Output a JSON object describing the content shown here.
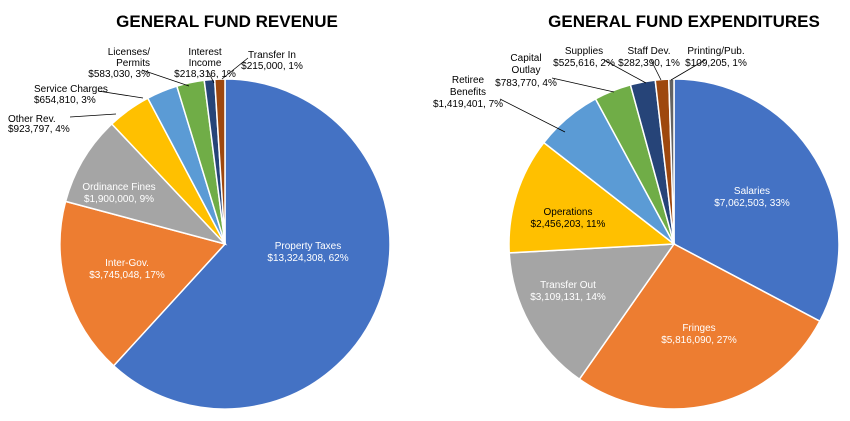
{
  "chart_data": [
    {
      "type": "pie",
      "title": "GENERAL FUND REVENUE",
      "slices": [
        {
          "name": "Property Taxes",
          "value": 13324308,
          "label": "$13,324,308, 62%",
          "color": "#4472c4"
        },
        {
          "name": "Inter-Gov.",
          "value": 3745048,
          "label": "$3,745,048, 17%",
          "color": "#ed7d31"
        },
        {
          "name": "Ordinance Fines",
          "value": 1900000,
          "label": "$1,900,000, 9%",
          "color": "#a5a5a5"
        },
        {
          "name": "Other Rev.",
          "value": 923797,
          "label": "$923,797, 4%",
          "color": "#ffc000"
        },
        {
          "name": "Service Charges",
          "value": 654810,
          "label": "$654,810, 3%",
          "color": "#5b9bd5"
        },
        {
          "name": "Licenses/ Permits",
          "value": 583030,
          "label": "$583,030, 3%",
          "color": "#70ad47"
        },
        {
          "name": "Interest Income",
          "value": 218316,
          "label": "$218,316, 1%",
          "color": "#264478"
        },
        {
          "name": "Transfer In",
          "value": 215000,
          "label": "$215,000, 1%",
          "color": "#9e480e"
        }
      ]
    },
    {
      "type": "pie",
      "title": "GENERAL FUND EXPENDITURES",
      "slices": [
        {
          "name": "Salaries",
          "value": 7062503,
          "label": "$7,062,503, 33%",
          "color": "#4472c4"
        },
        {
          "name": "Fringes",
          "value": 5816090,
          "label": "$5,816,090, 27%",
          "color": "#ed7d31"
        },
        {
          "name": "Transfer Out",
          "value": 3109131,
          "label": "$3,109,131, 14%",
          "color": "#a5a5a5"
        },
        {
          "name": "Operations",
          "value": 2456203,
          "label": "$2,456,203, 11%",
          "color": "#ffc000"
        },
        {
          "name": "Retiree Benefits",
          "value": 1419401,
          "label": "$1,419,401, 7%",
          "color": "#5b9bd5"
        },
        {
          "name": "Capital Outlay",
          "value": 783770,
          "label": "$783,770, 4%",
          "color": "#70ad47"
        },
        {
          "name": "Supplies",
          "value": 525616,
          "label": "$525,616, 2%",
          "color": "#264478"
        },
        {
          "name": "Staff Dev.",
          "value": 282390,
          "label": "$282,390, 1%",
          "color": "#9e480e"
        },
        {
          "name": "Printing/Pub.",
          "value": 109205,
          "label": "$109,205, 1%",
          "color": "#636363"
        }
      ]
    }
  ]
}
